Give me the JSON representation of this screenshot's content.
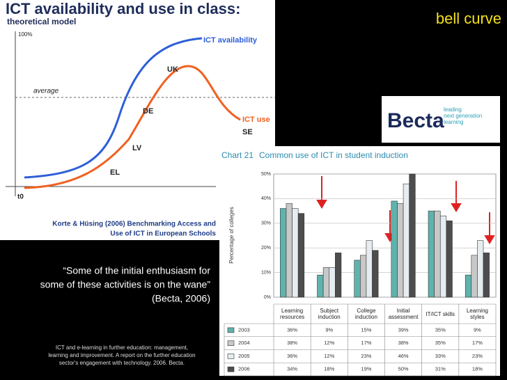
{
  "slide": {
    "title": "ICT availability and use in class:",
    "subtitle": "theoretical model",
    "corner_label": "bell curve",
    "citation": [
      "Korte & Hüsing (2006) Benchmarking Access and",
      "Use of ICT in European Schools"
    ],
    "quote": [
      "“Some of the initial enthusiasm for",
      "some of these activities is on the wane”",
      "(Becta, 2006)"
    ],
    "footnote": [
      "ICT and e-learning in further education: management,",
      "learning and improvement. A report on the further education",
      "sector's engagement with technology. 2006. Becta."
    ]
  },
  "diagram": {
    "top_label": "100%",
    "average_label": "average",
    "availability_label": "ICT availability",
    "use_label": "ICT use",
    "origin_label": "t0",
    "countries": [
      "UK",
      "DE",
      "LV",
      "EL",
      "SE"
    ]
  },
  "becta": {
    "name": "Becta",
    "tagline": [
      "leading",
      "next generation",
      "learning"
    ]
  },
  "chart_data": {
    "type": "bar",
    "chart_label": "Chart 21",
    "title": "Common use of ICT in student induction",
    "y_label": "Percentage of colleges",
    "categories": [
      "Learning resources",
      "Subject induction",
      "College induction",
      "Initial assessment",
      "IT/ICT skills",
      "Learning styles"
    ],
    "ylim": [
      0,
      50
    ],
    "yticks": [
      {
        "value": 0,
        "label": "0%"
      },
      {
        "value": 10,
        "label": "10%"
      },
      {
        "value": 20,
        "label": "20%"
      },
      {
        "value": 30,
        "label": "30%"
      },
      {
        "value": 40,
        "label": "40%"
      },
      {
        "value": 50,
        "label": "50%"
      }
    ],
    "grid": true,
    "series": [
      {
        "name": "2003",
        "color": "#5fb3ad",
        "values": [
          36,
          9,
          15,
          39,
          35,
          9
        ],
        "value_labels": [
          "36%",
          "9%",
          "15%",
          "39%",
          "35%",
          "9%"
        ]
      },
      {
        "name": "2004",
        "color": "#c8c8c8",
        "values": [
          38,
          12,
          17,
          38,
          35,
          17
        ],
        "value_labels": [
          "38%",
          "12%",
          "17%",
          "38%",
          "35%",
          "17%"
        ]
      },
      {
        "name": "2005",
        "color": "#e6ecef",
        "values": [
          36,
          12,
          23,
          46,
          33,
          23
        ],
        "value_labels": [
          "36%",
          "12%",
          "23%",
          "46%",
          "33%",
          "23%"
        ]
      },
      {
        "name": "2006",
        "color": "#4d4d4d",
        "values": [
          34,
          18,
          19,
          50,
          31,
          18
        ],
        "value_labels": [
          "34%",
          "18%",
          "19%",
          "50%",
          "31%",
          "18%"
        ]
      }
    ]
  }
}
